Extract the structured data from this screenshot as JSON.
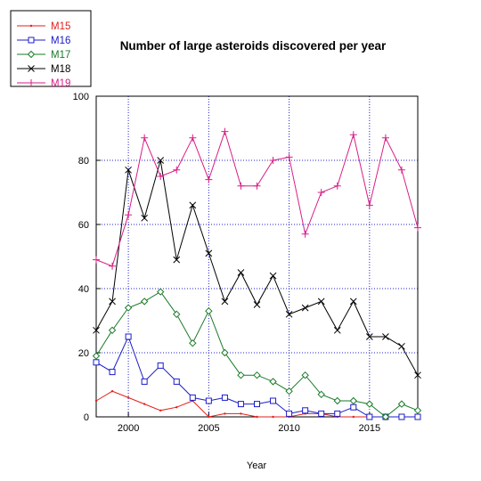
{
  "chart_data": {
    "type": "line",
    "title": "Number of large asteroids discovered per year",
    "xlabel": "Year",
    "ylabel": "",
    "xlim": [
      1998,
      2018
    ],
    "ylim": [
      0,
      100
    ],
    "x_ticks": [
      2000,
      2005,
      2010,
      2015
    ],
    "y_ticks": [
      0,
      20,
      40,
      60,
      80,
      100
    ],
    "grid": true,
    "legend_position": "top-left outside plot",
    "x": [
      1998,
      1999,
      2000,
      2001,
      2002,
      2003,
      2004,
      2005,
      2006,
      2007,
      2008,
      2009,
      2010,
      2011,
      2012,
      2013,
      2014,
      2015,
      2016,
      2017,
      2018
    ],
    "series": [
      {
        "name": "M15",
        "color": "#e0201c",
        "marker": "dot",
        "values": [
          5,
          8,
          6,
          4,
          2,
          3,
          5,
          0,
          1,
          1,
          0,
          0,
          0,
          1,
          1,
          0,
          0,
          0,
          0,
          0,
          0
        ]
      },
      {
        "name": "M16",
        "color": "#1c1cc8",
        "marker": "square",
        "values": [
          17,
          14,
          25,
          11,
          16,
          11,
          6,
          5,
          6,
          4,
          4,
          5,
          1,
          2,
          1,
          1,
          3,
          0,
          0,
          0,
          0
        ]
      },
      {
        "name": "M17",
        "color": "#1a7a2a",
        "marker": "diamond",
        "values": [
          19,
          27,
          34,
          36,
          39,
          32,
          23,
          33,
          20,
          13,
          13,
          11,
          8,
          13,
          7,
          5,
          5,
          4,
          0,
          4,
          2
        ]
      },
      {
        "name": "M18",
        "color": "#000000",
        "marker": "x",
        "values": [
          27,
          36,
          77,
          62,
          80,
          49,
          66,
          51,
          36,
          45,
          35,
          44,
          32,
          34,
          36,
          27,
          36,
          25,
          25,
          22,
          13
        ]
      },
      {
        "name": "M19",
        "color": "#d81d86",
        "marker": "plus",
        "values": [
          49,
          47,
          63,
          87,
          75,
          77,
          87,
          74,
          89,
          72,
          72,
          80,
          81,
          57,
          70,
          72,
          88,
          66,
          87,
          77,
          59
        ]
      }
    ]
  },
  "colors": {
    "grid": "#2020d0",
    "axis": "#000000"
  }
}
